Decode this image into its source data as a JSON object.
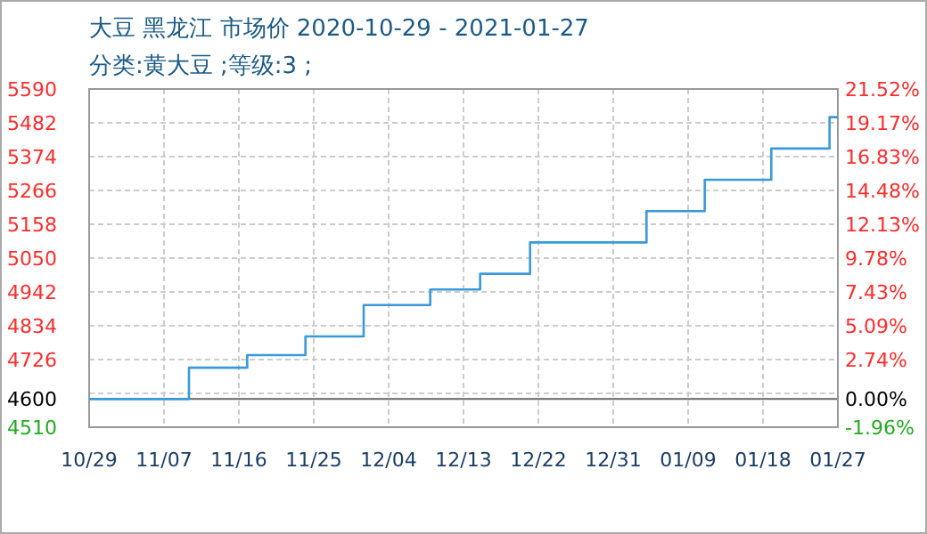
{
  "chart_data": {
    "type": "step",
    "title": "大豆 黑龙江 市场价 2020-10-29 - 2021-01-27",
    "subtitle": "分类:黄大豆 ;等级:3 ;",
    "x": [
      "2020-10-29",
      "2020-11-10",
      "2020-11-17",
      "2020-11-24",
      "2020-12-01",
      "2020-12-09",
      "2020-12-15",
      "2020-12-21",
      "2021-01-04",
      "2021-01-11",
      "2021-01-19",
      "2021-01-26",
      "2021-01-27"
    ],
    "values": [
      4600,
      4700,
      4740,
      4800,
      4900,
      4950,
      5000,
      5100,
      5200,
      5300,
      5400,
      5500,
      5500
    ],
    "color": "#3a9ad9",
    "xlim": [
      "2020-10-29",
      "2021-01-27"
    ],
    "xticks": [
      {
        "value": "2020-10-29",
        "label": "10/29"
      },
      {
        "value": "2020-11-07",
        "label": "11/07"
      },
      {
        "value": "2020-11-16",
        "label": "11/16"
      },
      {
        "value": "2020-11-25",
        "label": "11/25"
      },
      {
        "value": "2020-12-04",
        "label": "12/04"
      },
      {
        "value": "2020-12-13",
        "label": "12/13"
      },
      {
        "value": "2020-12-22",
        "label": "12/22"
      },
      {
        "value": "2020-12-31",
        "label": "12/31"
      },
      {
        "value": "2021-01-09",
        "label": "01/09"
      },
      {
        "value": "2021-01-18",
        "label": "01/18"
      },
      {
        "value": "2021-01-27",
        "label": "01/27"
      }
    ],
    "ylim": [
      4510,
      5590
    ],
    "yticks": [
      4510,
      {
        "value": 4618,
        "label": null
      },
      4726,
      4834,
      4942,
      5050,
      5158,
      5266,
      5374,
      5482,
      5590
    ],
    "y2lim": [
      -1.96,
      21.52
    ],
    "y2ticks": [
      {
        "value": -1.96,
        "label": "-1.96%"
      },
      {
        "value": 0,
        "label": "0.00%"
      },
      {
        "value": 2.74,
        "label": "2.74%"
      },
      {
        "value": 5.09,
        "label": "5.09%"
      },
      {
        "value": 7.43,
        "label": "7.43%"
      },
      {
        "value": 9.78,
        "label": "9.78%"
      },
      {
        "value": 12.13,
        "label": "12.13%"
      },
      {
        "value": 14.48,
        "label": "14.48%"
      },
      {
        "value": 16.83,
        "label": "16.83%"
      },
      {
        "value": 19.17,
        "label": "19.17%"
      },
      {
        "value": 21.52,
        "label": "21.52%"
      }
    ],
    "ref_lines": [
      {
        "axis": "y",
        "value": 4600,
        "label": "4600",
        "color": "#666666"
      }
    ],
    "grid": true
  }
}
